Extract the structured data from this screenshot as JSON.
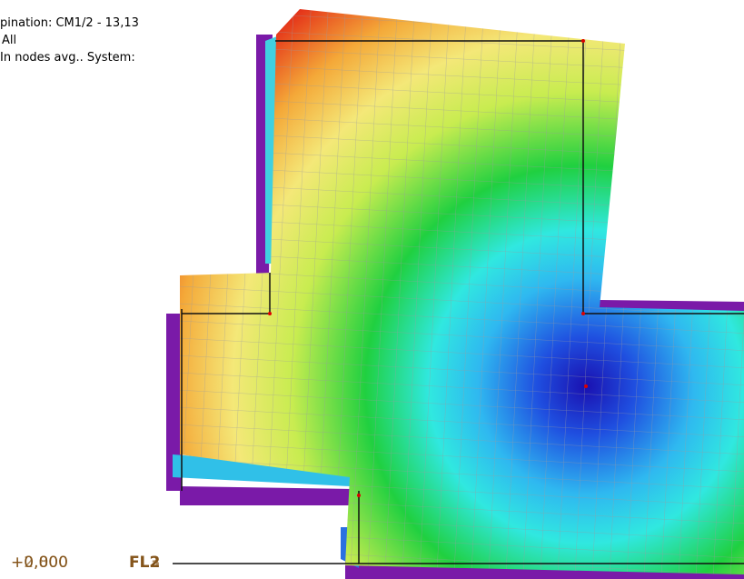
{
  "info": {
    "combination": "pination: CM1/2 - 13,13",
    "selection": "All",
    "mode": "In nodes avg.. System:"
  },
  "levels": [
    {
      "elevation": "+0,000",
      "name": "FL2"
    },
    {
      "elevation": "+2,800",
      "name": "FL3"
    }
  ]
}
